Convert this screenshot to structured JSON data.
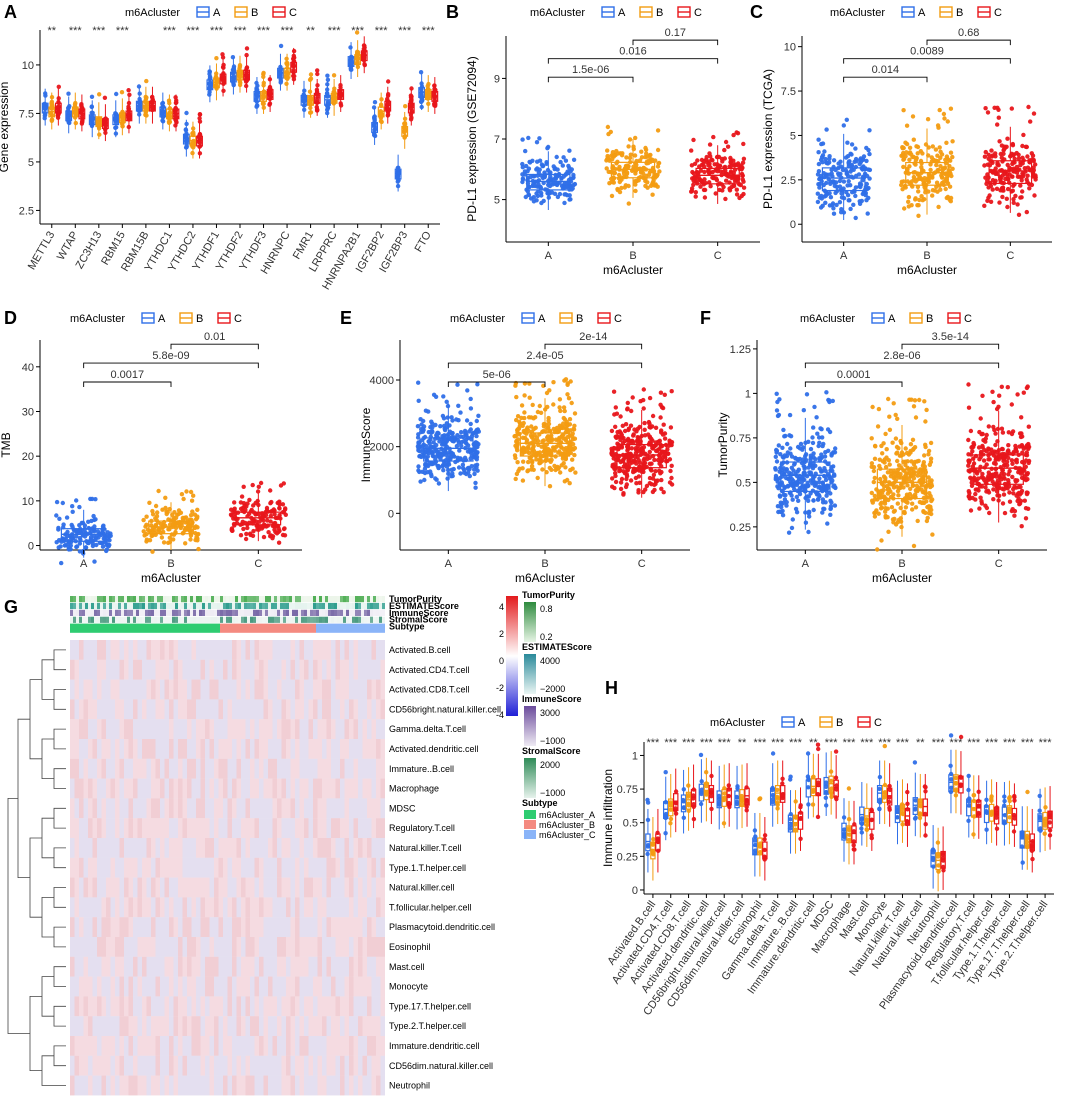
{
  "colors": {
    "A": "#2f6fe8",
    "B": "#f39c12",
    "C": "#e8161b"
  },
  "legend": {
    "title": "m6Acluster",
    "groups": [
      "A",
      "B",
      "C"
    ]
  },
  "chart_data": [
    {
      "panel": "A",
      "type": "box",
      "xlabel": "",
      "ylabel": "Gene expression",
      "ylim": [
        1.8,
        11.8
      ],
      "yticks": [
        2.5,
        5.0,
        7.5,
        10.0
      ],
      "categories": [
        "METTL3",
        "WTAP",
        "ZC3H13",
        "RBM15",
        "RBM15B",
        "YTHDC1",
        "YTHDC2",
        "YTHDF1",
        "YTHDF2",
        "YTHDF3",
        "HNRNPC",
        "FMR1",
        "LRPPRC",
        "HNRNPA2B1",
        "IGF2BP2",
        "IGF2BP3",
        "FTO"
      ],
      "significance": [
        "**",
        "***",
        "***",
        "***",
        "",
        "***",
        "***",
        "***",
        "***",
        "***",
        "***",
        "**",
        "***",
        "***",
        "***",
        "***",
        "***"
      ],
      "medians": {
        "A": [
          7.8,
          7.4,
          7.2,
          7.2,
          7.9,
          7.6,
          6.2,
          9.0,
          9.4,
          8.4,
          9.6,
          8.2,
          8.2,
          10.2,
          6.8,
          4.4,
          8.6
        ],
        "B": [
          7.6,
          7.6,
          7.1,
          7.3,
          7.9,
          7.5,
          6.1,
          9.1,
          9.5,
          8.4,
          9.6,
          8.2,
          8.3,
          10.3,
          7.6,
          6.6,
          8.5
        ],
        "C": [
          7.8,
          7.5,
          7.0,
          7.4,
          7.9,
          7.5,
          6.1,
          9.3,
          9.5,
          8.5,
          9.9,
          8.3,
          8.5,
          10.5,
          7.9,
          7.8,
          8.4
        ]
      }
    },
    {
      "panel": "B",
      "type": "box",
      "xlabel": "m6Acluster",
      "ylabel": "PD-L1 expression (GSE72094)",
      "ylim": [
        3.6,
        10.4
      ],
      "yticks": [
        5,
        7,
        9
      ],
      "categories": [
        "A",
        "B",
        "C"
      ],
      "medians": [
        5.6,
        6.0,
        5.8
      ],
      "comparisons": [
        {
          "pair": "A-B",
          "p": "1.5e-06"
        },
        {
          "pair": "A-C",
          "p": "0.016"
        },
        {
          "pair": "B-C",
          "p": "0.17"
        }
      ]
    },
    {
      "panel": "C",
      "type": "box",
      "xlabel": "m6Acluster",
      "ylabel": "PD-L1 expression (TCGA)",
      "ylim": [
        -1.0,
        10.6
      ],
      "yticks": [
        0.0,
        2.5,
        5.0,
        7.5,
        10.0
      ],
      "categories": [
        "A",
        "B",
        "C"
      ],
      "medians": [
        2.6,
        2.9,
        3.0
      ],
      "comparisons": [
        {
          "pair": "A-B",
          "p": "0.014"
        },
        {
          "pair": "A-C",
          "p": "0.0089"
        },
        {
          "pair": "B-C",
          "p": "0.68"
        }
      ]
    },
    {
      "panel": "D",
      "type": "box",
      "xlabel": "m6Acluster",
      "ylabel": "TMB",
      "ylim": [
        -1,
        46
      ],
      "yticks": [
        0,
        10,
        20,
        30,
        40
      ],
      "categories": [
        "A",
        "B",
        "C"
      ],
      "medians": [
        2.5,
        4.2,
        6.2
      ],
      "comparisons": [
        {
          "pair": "A-B",
          "p": "0.0017"
        },
        {
          "pair": "A-C",
          "p": "5.8e-09"
        },
        {
          "pair": "B-C",
          "p": "0.01"
        }
      ]
    },
    {
      "panel": "E",
      "type": "box",
      "xlabel": "m6Acluster",
      "ylabel": "ImmuneScore",
      "ylim": [
        -1100,
        5200
      ],
      "yticks": [
        0,
        2000,
        4000
      ],
      "categories": [
        "A",
        "B",
        "C"
      ],
      "medians": [
        1950,
        2100,
        1750
      ],
      "comparisons": [
        {
          "pair": "A-B",
          "p": "5e-06"
        },
        {
          "pair": "A-C",
          "p": "2.4e-05"
        },
        {
          "pair": "B-C",
          "p": "2e-14"
        }
      ]
    },
    {
      "panel": "F",
      "type": "box",
      "xlabel": "m6Acluster",
      "ylabel": "TumorPurity",
      "ylim": [
        0.12,
        1.3
      ],
      "yticks": [
        0.25,
        0.5,
        0.75,
        1.0,
        1.25
      ],
      "categories": [
        "A",
        "B",
        "C"
      ],
      "medians": [
        0.54,
        0.5,
        0.58
      ],
      "comparisons": [
        {
          "pair": "A-B",
          "p": "0.0001"
        },
        {
          "pair": "A-C",
          "p": "2.8e-06"
        },
        {
          "pair": "B-C",
          "p": "3.5e-14"
        }
      ]
    },
    {
      "panel": "G",
      "type": "heatmap",
      "annotation_rows": [
        "TumorPurity",
        "ESTIMATEScore",
        "ImmuneScore",
        "StromalScore",
        "Subtype"
      ],
      "rows": [
        "Activated.B.cell",
        "Activated.CD4.T.cell",
        "Activated.CD8.T.cell",
        "CD56bright.natural.killer.cell",
        "Gamma.delta.T.cell",
        "Activated.dendritic.cell",
        "Immature..B.cell",
        "Macrophage",
        "MDSC",
        "Regulatory.T.cell",
        "Natural.killer.T.cell",
        "Type.1.T.helper.cell",
        "Natural.killer.cell",
        "T.follicular.helper.cell",
        "Plasmacytoid.dendritic.cell",
        "Eosinophil",
        "Mast.cell",
        "Monocyte",
        "Type.17.T.helper.cell",
        "Type.2.T.helper.cell",
        "Immature.dendritic.cell",
        "CD56dim.natural.killer.cell",
        "Neutrophil"
      ],
      "colorbar": {
        "labels": [
          "4",
          "2",
          "0",
          "-2",
          "-4"
        ]
      },
      "legends": [
        {
          "title": "TumorPurity",
          "labels": [
            "0.8",
            "0.2"
          ]
        },
        {
          "title": "ESTIMATEScore",
          "labels": [
            "4000",
            "−2000"
          ]
        },
        {
          "title": "ImmuneScore",
          "labels": [
            "3000",
            "−1000"
          ]
        },
        {
          "title": "StromalScore",
          "labels": [
            "2000",
            "−1000"
          ]
        },
        {
          "title": "Subtype",
          "labels": [
            "m6Acluster_A",
            "m6Acluster_B",
            "m6Acluster_C"
          ]
        }
      ]
    },
    {
      "panel": "H",
      "type": "box",
      "xlabel": "",
      "ylabel": "Immune infiltration",
      "ylim": [
        -0.03,
        1.1
      ],
      "yticks": [
        0.0,
        0.25,
        0.5,
        0.75,
        1.0
      ],
      "categories": [
        "Activated.B.cell",
        "Activated.CD4.T.cell",
        "Activated.CD8.T.cell",
        "Activated.dendritic.cell",
        "CD56bright.natural.killer.cell",
        "CD56dim.natural.killer.cell",
        "Eosinophil",
        "Gamma.delta.T.cell",
        "Immature..B.cell",
        "Immature.dendritic.cell",
        "MDSC",
        "Macrophage",
        "Mast.cell",
        "Monocyte",
        "Natural.killer.T.cell",
        "Natural.killer.cell",
        "Neutrophil",
        "Plasmacytoid.dendritic.cell",
        "Regulatory.T.cell",
        "T.follicular.helper.cell",
        "Type.1.T.helper.cell",
        "Type.17.T.helper.cell",
        "Type.2.T.helper.cell"
      ],
      "significance": [
        "***",
        "***",
        "***",
        "***",
        "***",
        "**",
        "***",
        "***",
        "***",
        "**",
        "***",
        "***",
        "***",
        "***",
        "***",
        "**",
        "***",
        "***",
        "***",
        "***",
        "***",
        "***",
        "***"
      ],
      "medians": {
        "A": [
          0.36,
          0.6,
          0.65,
          0.73,
          0.68,
          0.68,
          0.33,
          0.7,
          0.5,
          0.76,
          0.78,
          0.44,
          0.56,
          0.72,
          0.57,
          0.63,
          0.24,
          0.8,
          0.62,
          0.57,
          0.56,
          0.38,
          0.51
        ],
        "B": [
          0.3,
          0.62,
          0.67,
          0.74,
          0.69,
          0.69,
          0.33,
          0.72,
          0.5,
          0.77,
          0.79,
          0.42,
          0.55,
          0.72,
          0.58,
          0.62,
          0.22,
          0.8,
          0.61,
          0.58,
          0.57,
          0.38,
          0.52
        ],
        "C": [
          0.36,
          0.66,
          0.69,
          0.72,
          0.7,
          0.7,
          0.3,
          0.72,
          0.52,
          0.77,
          0.76,
          0.42,
          0.52,
          0.7,
          0.55,
          0.62,
          0.23,
          0.79,
          0.61,
          0.56,
          0.55,
          0.36,
          0.53
        ]
      }
    }
  ]
}
